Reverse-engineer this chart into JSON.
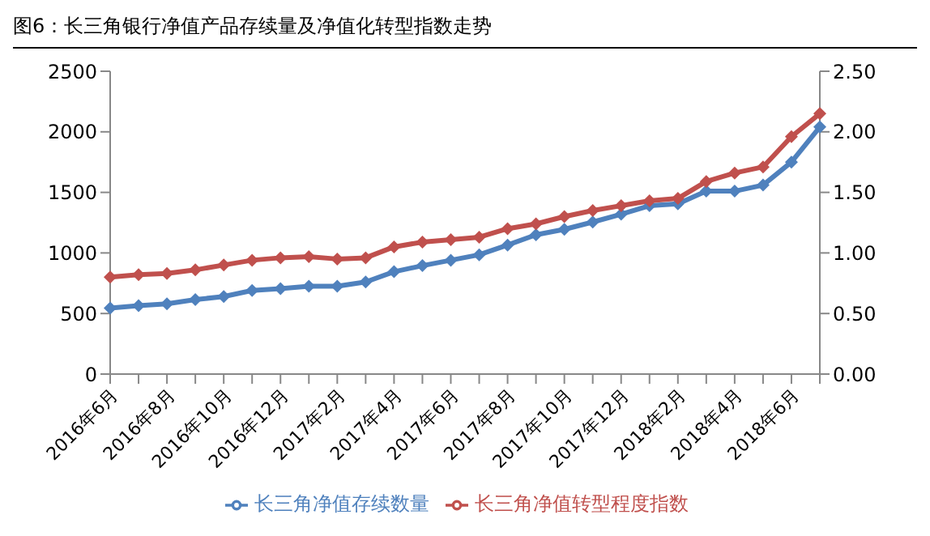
{
  "chart_data": {
    "type": "line",
    "title": "图6：长三角银行净值产品存续量及净值化转型指数走势",
    "categories": [
      "2016年6月",
      null,
      "2016年8月",
      null,
      "2016年10月",
      null,
      "2016年12月",
      null,
      "2017年2月",
      null,
      "2017年4月",
      null,
      "2017年6月",
      null,
      "2017年8月",
      null,
      "2017年10月",
      null,
      "2017年12月",
      null,
      "2018年2月",
      null,
      "2018年4月",
      null,
      "2018年6月",
      null
    ],
    "series": [
      {
        "name": "长三角净值存续数量",
        "color": "#4f81bd",
        "values": [
          545,
          565,
          580,
          615,
          640,
          690,
          705,
          725,
          725,
          760,
          845,
          895,
          940,
          985,
          1065,
          1150,
          1195,
          1255,
          1320,
          1390,
          1405,
          1510,
          1510,
          1560,
          1750,
          2040
        ]
      },
      {
        "name": "长三角净值转型程度指数",
        "color": "#c0504d",
        "axis": "y2",
        "values": [
          0.8,
          0.82,
          0.83,
          0.86,
          0.9,
          0.94,
          0.96,
          0.97,
          0.95,
          0.96,
          1.05,
          1.09,
          1.11,
          1.13,
          1.2,
          1.24,
          1.3,
          1.35,
          1.39,
          1.43,
          1.45,
          1.59,
          1.66,
          1.71,
          1.96,
          2.15
        ]
      }
    ],
    "ylim": [
      0,
      2500
    ],
    "yticks": [
      0,
      500,
      1000,
      1500,
      2000,
      2500
    ],
    "y2lim": [
      0,
      2.5
    ],
    "y2ticks": [
      {
        "value": 0,
        "label": "0.00"
      },
      {
        "value": 0.5,
        "label": "0.50"
      },
      {
        "value": 1,
        "label": "1.00"
      },
      {
        "value": 1.5,
        "label": "1.50"
      },
      {
        "value": 2,
        "label": "2.00"
      },
      {
        "value": 2.5,
        "label": "2.50"
      }
    ],
    "grid": false,
    "legend": "bottom",
    "marker": "diamond",
    "line_style": "solid"
  }
}
